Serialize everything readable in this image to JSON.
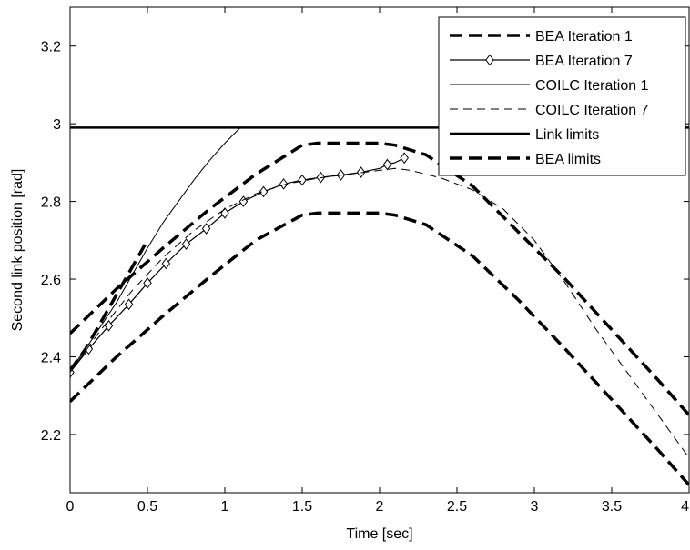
{
  "chart_data": {
    "type": "line",
    "title": "",
    "xlabel": "Time [sec]",
    "ylabel": "Second link position [rad]",
    "xlim": [
      0,
      4
    ],
    "ylim": [
      2.05,
      3.3
    ],
    "grid": false,
    "legend_position": "top-right",
    "x_ticks": [
      0,
      0.5,
      1,
      1.5,
      2,
      2.5,
      3,
      3.5,
      4
    ],
    "x_tick_labels": [
      "0",
      "0.5",
      "1",
      "1.5",
      "2",
      "2.5",
      "3",
      "3.5",
      "4"
    ],
    "y_ticks": [
      2.2,
      2.4,
      2.6,
      2.8,
      3.0,
      3.2
    ],
    "y_tick_labels": [
      "2.2",
      "2.4",
      "2.6",
      "2.8",
      "3",
      "3.2"
    ],
    "series": [
      {
        "name": "BEA Iteration 1",
        "style": "thick-dashed",
        "x": [
          0,
          0.1,
          0.2,
          0.3,
          0.4,
          0.5
        ],
        "y": [
          2.365,
          2.42,
          2.49,
          2.56,
          2.63,
          2.7
        ]
      },
      {
        "name": "BEA Iteration 7",
        "style": "solid-diamond",
        "x": [
          0,
          0.12,
          0.25,
          0.38,
          0.5,
          0.62,
          0.75,
          0.88,
          1.0,
          1.12,
          1.25,
          1.38,
          1.5,
          1.62,
          1.75,
          1.88,
          2.0,
          2.05,
          2.1,
          2.16
        ],
        "y": [
          2.36,
          2.42,
          2.48,
          2.535,
          2.59,
          2.64,
          2.69,
          2.73,
          2.77,
          2.8,
          2.825,
          2.845,
          2.855,
          2.862,
          2.868,
          2.875,
          2.885,
          2.895,
          2.9,
          2.912
        ],
        "marker_x": [
          0,
          0.12,
          0.25,
          0.38,
          0.5,
          0.62,
          0.75,
          0.88,
          1.0,
          1.12,
          1.25,
          1.38,
          1.5,
          1.62,
          1.75,
          1.88,
          2.05,
          2.16
        ],
        "marker_y": [
          2.36,
          2.42,
          2.48,
          2.535,
          2.59,
          2.64,
          2.69,
          2.73,
          2.77,
          2.8,
          2.825,
          2.845,
          2.855,
          2.862,
          2.868,
          2.875,
          2.895,
          2.912
        ]
      },
      {
        "name": "COILC Iteration 1",
        "style": "thin-solid",
        "x": [
          0,
          0.1,
          0.2,
          0.3,
          0.4,
          0.5,
          0.6,
          0.7,
          0.8,
          0.9,
          1.0,
          1.1
        ],
        "y": [
          2.365,
          2.42,
          2.48,
          2.54,
          2.61,
          2.68,
          2.745,
          2.8,
          2.855,
          2.905,
          2.95,
          2.99
        ]
      },
      {
        "name": "COILC Iteration 7",
        "style": "thin-dashed",
        "x": [
          0,
          0.2,
          0.4,
          0.6,
          0.8,
          1.0,
          1.2,
          1.4,
          1.6,
          1.8,
          2.0,
          2.1,
          2.2,
          2.4,
          2.6,
          2.8,
          3.0,
          3.2,
          3.4,
          3.6,
          3.8,
          4.0
        ],
        "y": [
          2.36,
          2.47,
          2.57,
          2.655,
          2.725,
          2.78,
          2.82,
          2.845,
          2.86,
          2.87,
          2.88,
          2.885,
          2.88,
          2.86,
          2.83,
          2.78,
          2.7,
          2.59,
          2.47,
          2.36,
          2.25,
          2.14
        ]
      },
      {
        "name": "Link limits",
        "style": "thick-solid",
        "x": [
          0,
          4
        ],
        "y": [
          2.99,
          2.99
        ]
      },
      {
        "name": "BEA limits",
        "style": "thick-dashed",
        "x": [
          0,
          0.3,
          0.6,
          0.9,
          1.2,
          1.5,
          1.6,
          1.8,
          2.0,
          2.1,
          2.3,
          2.6,
          2.9,
          3.2,
          3.5,
          3.8,
          4.0
        ],
        "y": [
          2.46,
          2.575,
          2.68,
          2.78,
          2.87,
          2.945,
          2.95,
          2.95,
          2.95,
          2.945,
          2.92,
          2.84,
          2.72,
          2.6,
          2.47,
          2.34,
          2.25
        ]
      },
      {
        "name": "",
        "style": "thick-dashed",
        "x": [
          0,
          0.3,
          0.6,
          0.9,
          1.2,
          1.5,
          1.6,
          1.8,
          2.0,
          2.1,
          2.3,
          2.6,
          2.9,
          3.2,
          3.5,
          3.8,
          4.0
        ],
        "y": [
          2.285,
          2.4,
          2.505,
          2.605,
          2.7,
          2.765,
          2.77,
          2.77,
          2.77,
          2.765,
          2.74,
          2.66,
          2.545,
          2.42,
          2.29,
          2.16,
          2.07
        ]
      }
    ]
  }
}
